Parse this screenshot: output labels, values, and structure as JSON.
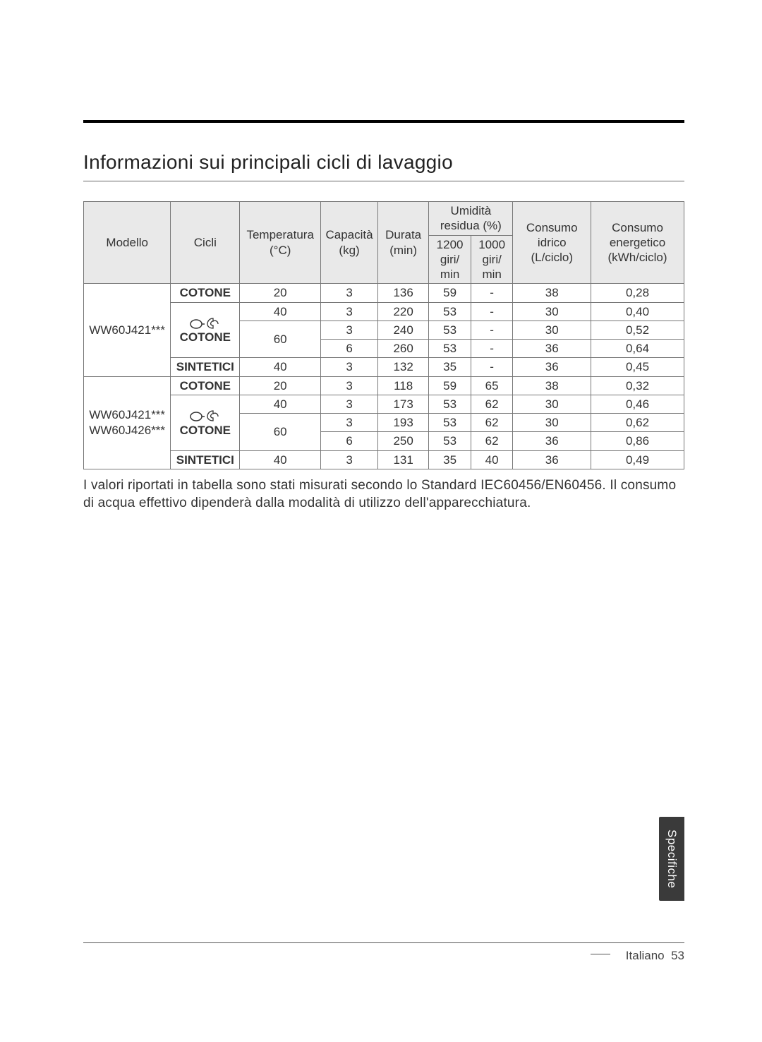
{
  "heading": "Informazioni sui principali cicli di lavaggio",
  "headers": {
    "modello": "Modello",
    "cicli": "Cicli",
    "temperatura": "Temperatura\n(°C)",
    "capacita": "Capacità\n(kg)",
    "durata": "Durata\n(min)",
    "umidita_group": "Umidità\nresidua (%)",
    "umidita_1200": "1200\ngiri/\nmin",
    "umidita_1000": "1000\ngiri/\nmin",
    "consumo_idrico": "Consumo\nidrico\n(L/ciclo)",
    "consumo_energetico": "Consumo\nenergetico\n(kWh/ciclo)"
  },
  "models": [
    {
      "name": "WW60J421***",
      "rows": [
        {
          "cycle_label": "COTONE",
          "icon": false,
          "temp": "20",
          "cap": "3",
          "durata": "136",
          "u1200": "59",
          "u1000": "-",
          "water": "38",
          "energy": "0,28",
          "cycle_rowspan": 1,
          "temp_rowspan": 1
        },
        {
          "cycle_label": "COTONE",
          "icon": true,
          "temp": "40",
          "cap": "3",
          "durata": "220",
          "u1200": "53",
          "u1000": "-",
          "water": "30",
          "energy": "0,40",
          "cycle_rowspan": 3,
          "temp_rowspan": 1
        },
        {
          "temp": "60",
          "cap": "3",
          "durata": "240",
          "u1200": "53",
          "u1000": "-",
          "water": "30",
          "energy": "0,52",
          "temp_rowspan": 2
        },
        {
          "cap": "6",
          "durata": "260",
          "u1200": "53",
          "u1000": "-",
          "water": "36",
          "energy": "0,64"
        },
        {
          "cycle_label": "SINTETICI",
          "icon": false,
          "temp": "40",
          "cap": "3",
          "durata": "132",
          "u1200": "35",
          "u1000": "-",
          "water": "36",
          "energy": "0,45",
          "cycle_rowspan": 1,
          "temp_rowspan": 1
        }
      ]
    },
    {
      "name": "WW60J421***\nWW60J426***",
      "rows": [
        {
          "cycle_label": "COTONE",
          "icon": false,
          "temp": "20",
          "cap": "3",
          "durata": "118",
          "u1200": "59",
          "u1000": "65",
          "water": "38",
          "energy": "0,32",
          "cycle_rowspan": 1,
          "temp_rowspan": 1
        },
        {
          "cycle_label": "COTONE",
          "icon": true,
          "temp": "40",
          "cap": "3",
          "durata": "173",
          "u1200": "53",
          "u1000": "62",
          "water": "30",
          "energy": "0,46",
          "cycle_rowspan": 3,
          "temp_rowspan": 1
        },
        {
          "temp": "60",
          "cap": "3",
          "durata": "193",
          "u1200": "53",
          "u1000": "62",
          "water": "30",
          "energy": "0,62",
          "temp_rowspan": 2
        },
        {
          "cap": "6",
          "durata": "250",
          "u1200": "53",
          "u1000": "62",
          "water": "36",
          "energy": "0,86"
        },
        {
          "cycle_label": "SINTETICI",
          "icon": false,
          "temp": "40",
          "cap": "3",
          "durata": "131",
          "u1200": "35",
          "u1000": "40",
          "water": "36",
          "energy": "0,49",
          "cycle_rowspan": 1,
          "temp_rowspan": 1
        }
      ]
    }
  ],
  "note": "I valori riportati in tabella sono stati misurati secondo lo Standard IEC60456/EN60456. Il consumo di acqua effettivo dipenderà dalla modalità di utilizzo dell'apparecchiatura.",
  "side_tab": "Specifiche",
  "footer_lang": "Italiano",
  "footer_page": "53",
  "colors": {
    "header_bg": "#e9e9e9",
    "border": "#777777",
    "tab_bg": "#3a3a3a",
    "tab_text": "#ffffff"
  },
  "col_widths_pct": [
    14.5,
    11.5,
    13.5,
    9.5,
    8.5,
    7,
    7,
    13,
    15.5
  ]
}
